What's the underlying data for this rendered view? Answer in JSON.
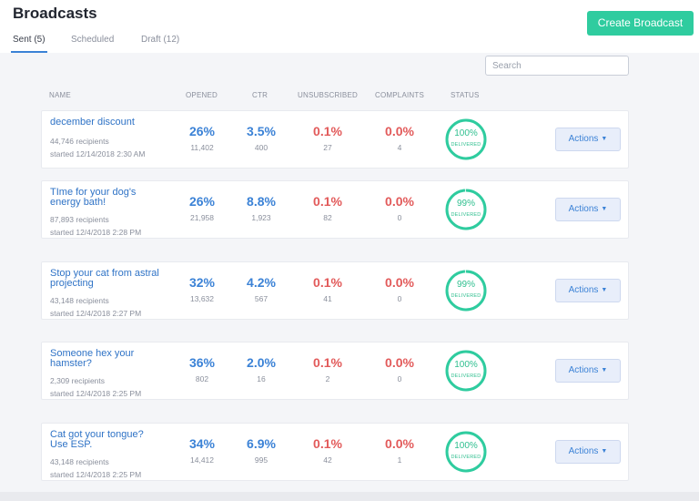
{
  "header": {
    "title": "Broadcasts",
    "create_label": "Create Broadcast"
  },
  "tabs": [
    {
      "label": "Sent (5)",
      "active": true
    },
    {
      "label": "Scheduled",
      "active": false
    },
    {
      "label": "Draft (12)",
      "active": false
    }
  ],
  "search": {
    "placeholder": "Search",
    "value": ""
  },
  "columns": {
    "name": "NAME",
    "opened": "OPENED",
    "ctr": "CTR",
    "unsubscribed": "UNSUBSCRIBED",
    "complaints": "COMPLAINTS",
    "status": "STATUS"
  },
  "colors": {
    "accent": "#2fcc9f",
    "link": "#2f73c6",
    "positive_metric": "#3b82d6",
    "negative_metric": "#e25a5a",
    "ring": "#2fbf8f"
  },
  "broadcasts": [
    {
      "name": "december discount",
      "recipients": "44,746 recipients",
      "started": "started 12/14/2018 2:30 AM",
      "opened_pct": "26%",
      "opened_count": "11,402",
      "ctr_pct": "3.5%",
      "ctr_count": "400",
      "unsub_pct": "0.1%",
      "unsub_count": "27",
      "complaints_pct": "0.0%",
      "complaints_count": "4",
      "status_pct": "100%",
      "delivered_fraction": 1.0,
      "status_label": "DELIVERED",
      "actions_label": "Actions"
    },
    {
      "name": "TIme for your dog's energy bath!",
      "recipients": "87,893 recipients",
      "started": "started 12/4/2018 2:28 PM",
      "opened_pct": "26%",
      "opened_count": "21,958",
      "ctr_pct": "8.8%",
      "ctr_count": "1,923",
      "unsub_pct": "0.1%",
      "unsub_count": "82",
      "complaints_pct": "0.0%",
      "complaints_count": "0",
      "status_pct": "99%",
      "delivered_fraction": 0.99,
      "status_label": "DELIVERED",
      "actions_label": "Actions"
    },
    {
      "name": "Stop your cat from astral projecting",
      "recipients": "43,148 recipients",
      "started": "started 12/4/2018 2:27 PM",
      "opened_pct": "32%",
      "opened_count": "13,632",
      "ctr_pct": "4.2%",
      "ctr_count": "567",
      "unsub_pct": "0.1%",
      "unsub_count": "41",
      "complaints_pct": "0.0%",
      "complaints_count": "0",
      "status_pct": "99%",
      "delivered_fraction": 0.99,
      "status_label": "DELIVERED",
      "actions_label": "Actions"
    },
    {
      "name": "Someone hex your hamster?",
      "recipients": "2,309 recipients",
      "started": "started 12/4/2018 2:25 PM",
      "opened_pct": "36%",
      "opened_count": "802",
      "ctr_pct": "2.0%",
      "ctr_count": "16",
      "unsub_pct": "0.1%",
      "unsub_count": "2",
      "complaints_pct": "0.0%",
      "complaints_count": "0",
      "status_pct": "100%",
      "delivered_fraction": 1.0,
      "status_label": "DELIVERED",
      "actions_label": "Actions"
    },
    {
      "name": "Cat got your tongue? Use ESP.",
      "recipients": "43,148 recipients",
      "started": "started 12/4/2018 2:25 PM",
      "opened_pct": "34%",
      "opened_count": "14,412",
      "ctr_pct": "6.9%",
      "ctr_count": "995",
      "unsub_pct": "0.1%",
      "unsub_count": "42",
      "complaints_pct": "0.0%",
      "complaints_count": "1",
      "status_pct": "100%",
      "delivered_fraction": 1.0,
      "status_label": "DELIVERED",
      "actions_label": "Actions"
    }
  ]
}
